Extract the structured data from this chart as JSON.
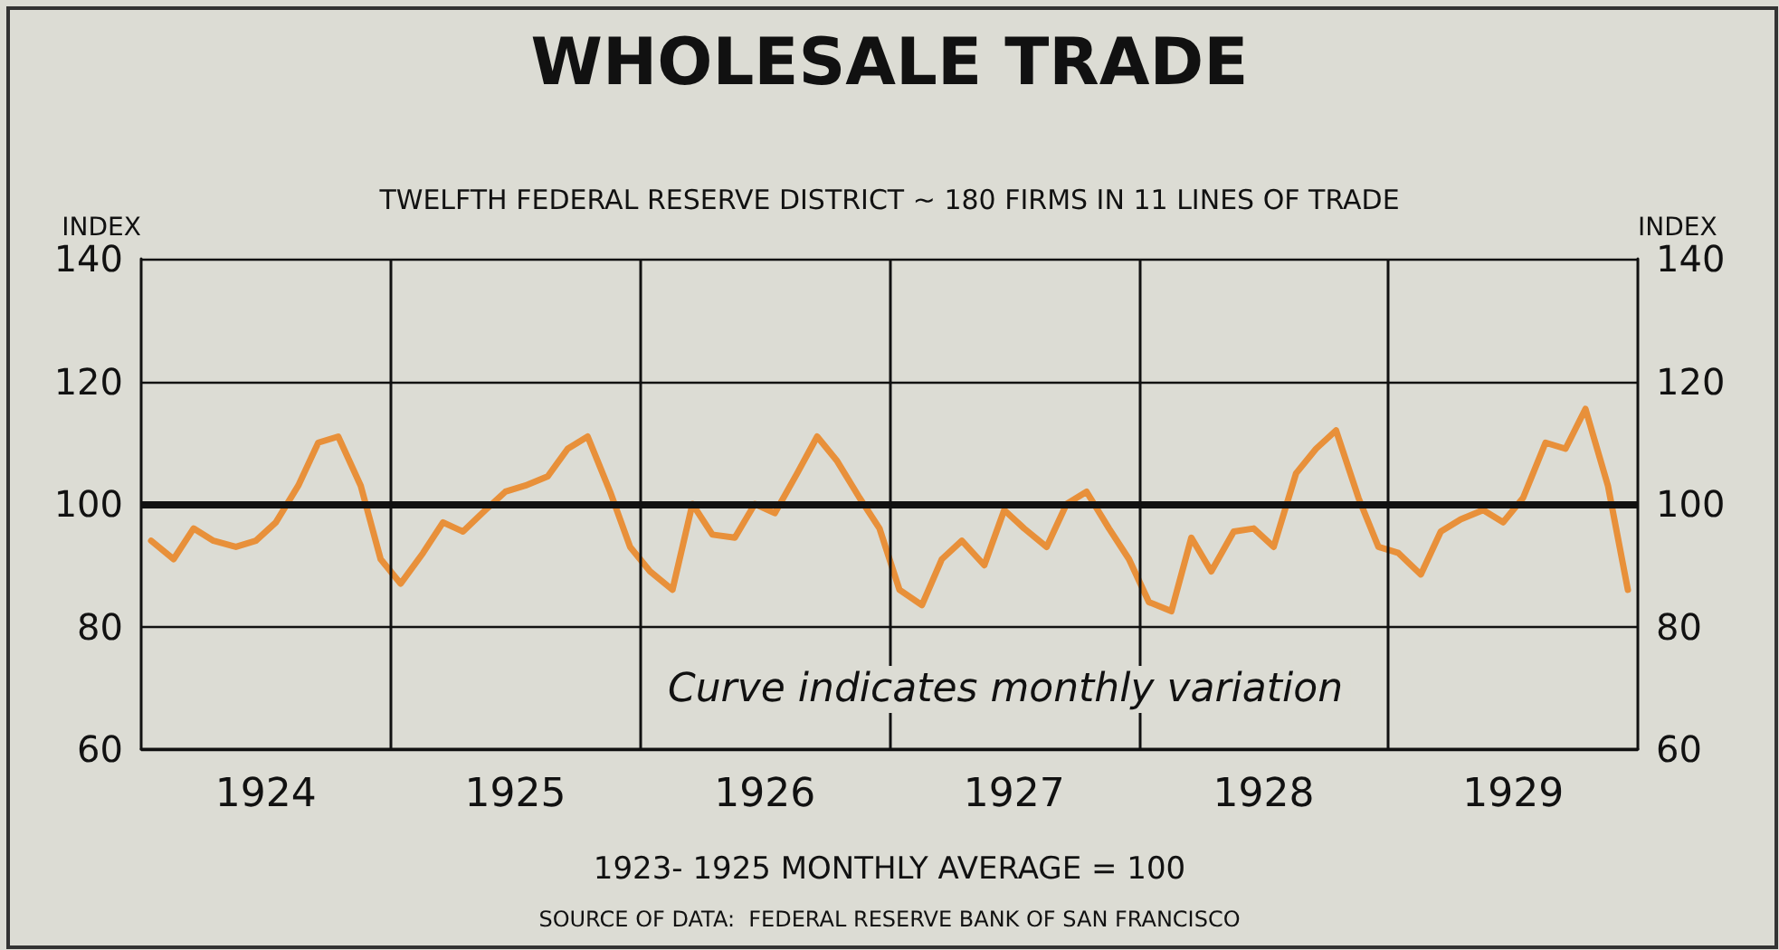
{
  "chart_data": {
    "type": "line",
    "title": "WHOLESALE TRADE",
    "subtitle": "TWELFTH FEDERAL RESERVE DISTRICT ~ 180 FIRMS IN 11 LINES OF TRADE",
    "xlabel": "1923- 1925 MONTHLY AVERAGE = 100",
    "ylabel": "INDEX",
    "y2label": "INDEX",
    "annotations": [
      "Curve indicates monthly variation",
      "SOURCE OF DATA:  FEDERAL RESERVE BANK OF SAN FRANCISCO"
    ],
    "x": [
      1924.04,
      1924.13,
      1924.21,
      1924.29,
      1924.38,
      1924.46,
      1924.54,
      1924.63,
      1924.71,
      1924.79,
      1924.88,
      1924.96,
      1925.04,
      1925.13,
      1925.21,
      1925.29,
      1925.38,
      1925.46,
      1925.54,
      1925.63,
      1925.71,
      1925.79,
      1925.88,
      1925.96,
      1926.04,
      1926.13,
      1926.21,
      1926.29,
      1926.38,
      1926.46,
      1926.54,
      1926.63,
      1926.71,
      1926.79,
      1926.88,
      1926.96,
      1927.04,
      1927.13,
      1927.21,
      1927.29,
      1927.38,
      1927.46,
      1927.54,
      1927.63,
      1927.71,
      1927.79,
      1927.88,
      1927.96,
      1928.04,
      1928.13,
      1928.21,
      1928.29,
      1928.38,
      1928.46,
      1928.54,
      1928.63,
      1928.71,
      1928.79,
      1928.88,
      1928.96,
      1929.04,
      1929.13,
      1929.21,
      1929.29,
      1929.38,
      1929.46,
      1929.54,
      1929.63,
      1929.71,
      1929.79,
      1929.88,
      1929.96
    ],
    "series": [
      {
        "color": "#e8903a",
        "values": [
          94,
          91,
          96,
          94,
          93,
          94,
          97,
          103,
          110,
          111,
          103,
          91,
          87,
          92,
          97,
          95.5,
          99,
          102,
          103,
          104.5,
          109,
          111,
          102,
          93,
          89,
          86,
          100,
          95,
          94.5,
          100,
          98.5,
          105,
          111,
          107,
          101,
          96,
          86,
          83.5,
          91,
          94,
          90,
          99,
          96,
          93,
          100,
          102,
          96,
          91,
          84,
          82.5,
          94.5,
          89,
          95.5,
          96,
          93,
          105,
          109,
          112,
          101,
          93,
          92,
          88.5,
          95.5,
          97.5,
          99,
          97,
          101,
          110,
          109,
          115.5,
          103,
          86
        ]
      }
    ],
    "xlim": [
      1924,
      1930
    ],
    "xticks": [
      {
        "value": 1924.5,
        "label": "1924"
      },
      {
        "value": 1925,
        "label": null
      },
      {
        "value": 1925.5,
        "label": "1925"
      },
      {
        "value": 1926,
        "label": null
      },
      {
        "value": 1926.5,
        "label": "1926"
      },
      {
        "value": 1927,
        "label": null
      },
      {
        "value": 1927.5,
        "label": "1927"
      },
      {
        "value": 1928,
        "label": null
      },
      {
        "value": 1928.5,
        "label": "1928"
      },
      {
        "value": 1929,
        "label": null
      },
      {
        "value": 1929.5,
        "label": "1929"
      }
    ],
    "ylim": [
      60,
      140
    ],
    "yticks": [
      60,
      80,
      100,
      120,
      140
    ],
    "y2lim": [
      60,
      140
    ],
    "y2ticks": [
      60,
      80,
      100,
      120,
      140
    ],
    "ref_lines": [
      {
        "axis": "y",
        "value": 100,
        "color": "#111111"
      }
    ],
    "grid": true,
    "marker": "none",
    "line_style": "solid"
  }
}
